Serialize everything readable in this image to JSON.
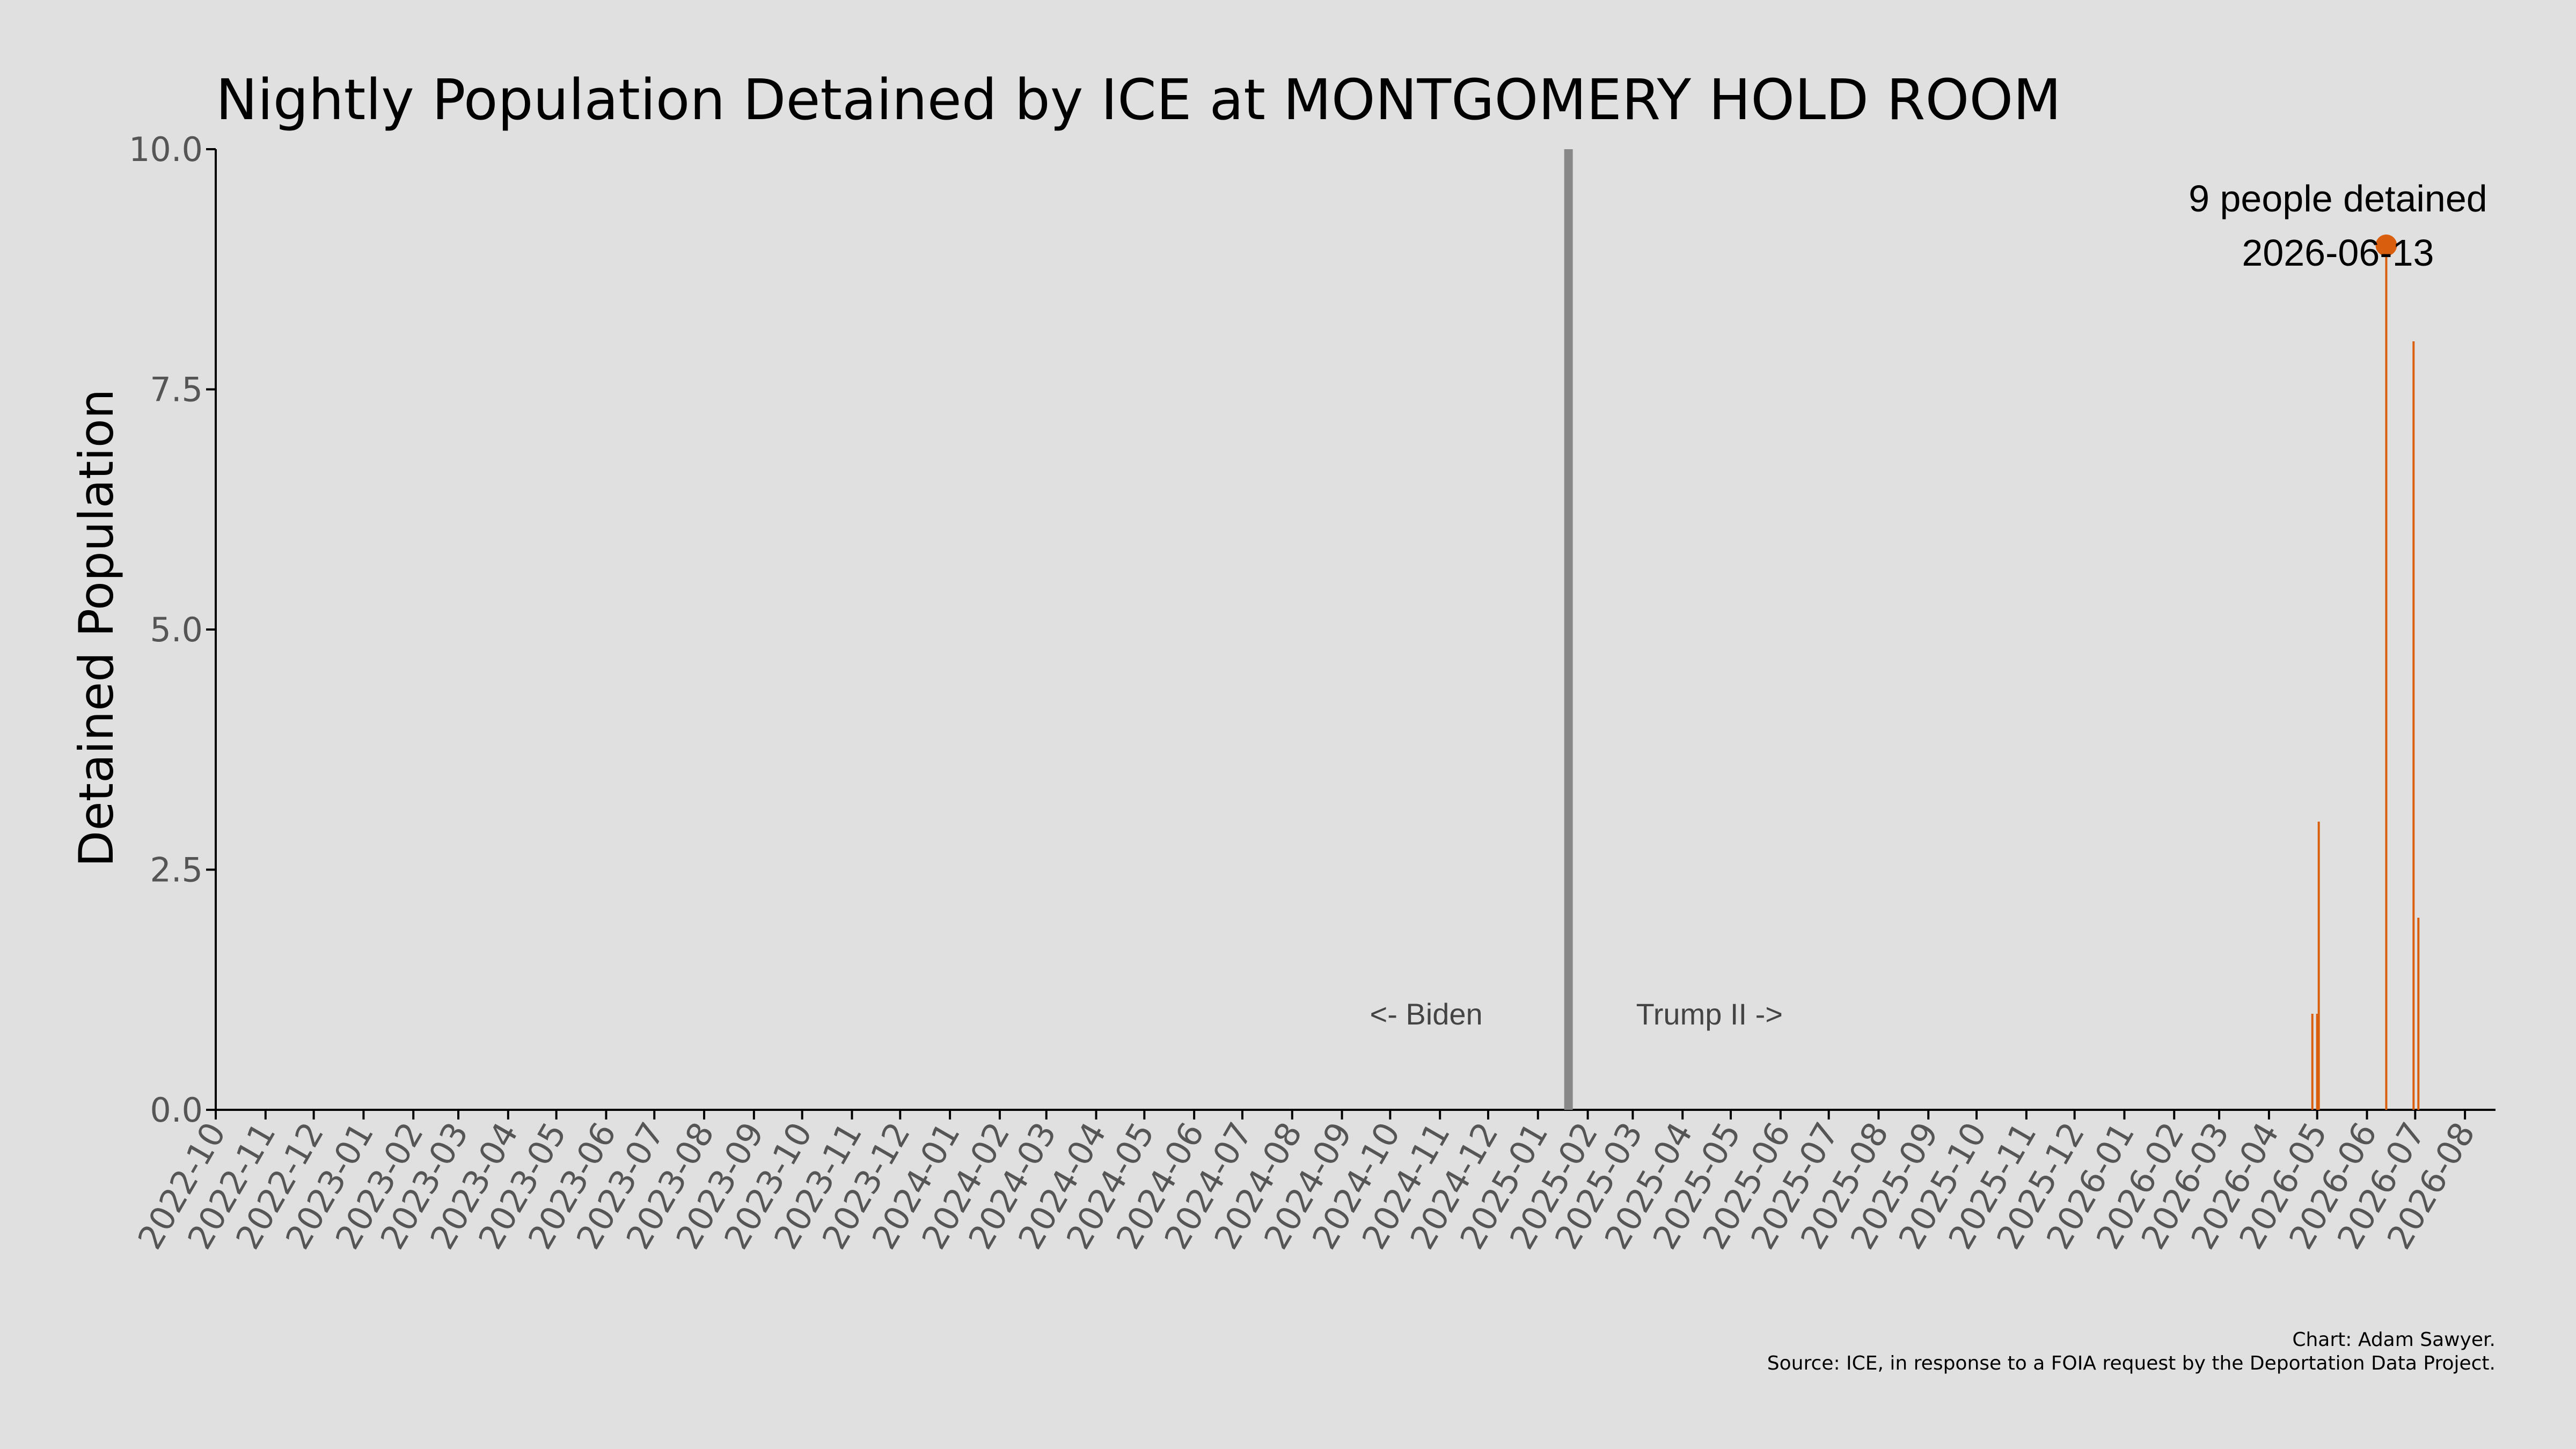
{
  "chart_data": {
    "type": "bar",
    "title": "Nightly Population Detained by ICE at MONTGOMERY HOLD ROOM",
    "ylabel": "Detained Population",
    "xlabel": "",
    "ylim": [
      0,
      10
    ],
    "xlim": [
      "2022-10-01",
      "2026-08-20"
    ],
    "yticks": [
      "0.0",
      "2.5",
      "5.0",
      "7.5",
      "10.0"
    ],
    "yticks_values": [
      0,
      2.5,
      5.0,
      7.5,
      10.0
    ],
    "xticks": [
      "2022-10",
      "2022-11",
      "2022-12",
      "2023-01",
      "2023-02",
      "2023-03",
      "2023-04",
      "2023-05",
      "2023-06",
      "2023-07",
      "2023-08",
      "2023-09",
      "2023-10",
      "2023-11",
      "2023-12",
      "2024-01",
      "2024-02",
      "2024-03",
      "2024-04",
      "2024-05",
      "2024-06",
      "2024-07",
      "2024-08",
      "2024-09",
      "2024-10",
      "2024-11",
      "2024-12",
      "2025-01",
      "2025-02",
      "2025-03",
      "2025-04",
      "2025-05",
      "2025-06",
      "2025-07",
      "2025-08",
      "2025-09",
      "2025-10",
      "2025-11",
      "2025-12",
      "2026-01",
      "2026-02",
      "2026-03",
      "2026-04",
      "2026-05",
      "2026-06",
      "2026-07",
      "2026-08"
    ],
    "series": [
      {
        "color": "#d95f0e",
        "points": [
          {
            "x": "2026-04-28",
            "y": 1
          },
          {
            "x": "2026-05-01",
            "y": 1
          },
          {
            "x": "2026-05-02",
            "y": 3
          },
          {
            "x": "2026-06-13",
            "y": 9
          },
          {
            "x": "2026-06-30",
            "y": 8
          },
          {
            "x": "2026-07-03",
            "y": 2
          }
        ]
      }
    ],
    "divider": {
      "x": "2025-01-20",
      "color": "#888888"
    },
    "era_labels": {
      "left": "<- Biden",
      "right": "Trump II ->"
    },
    "annotation": {
      "line1": "9 people detained",
      "line2": "2026-06-13",
      "x": "2026-06-13",
      "y": 9
    },
    "grid": false,
    "legend": "none"
  },
  "caption": {
    "line1": "Chart: Adam Sawyer.",
    "line2": "Source: ICE, in response to a FOIA request by the Deportation Data Project."
  }
}
